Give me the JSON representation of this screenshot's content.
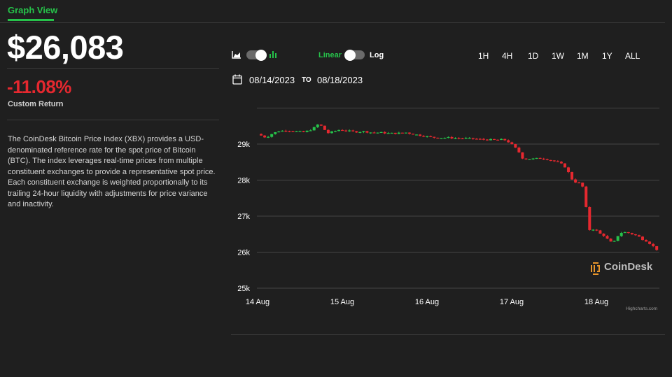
{
  "tab": {
    "label": "Graph View"
  },
  "price": "$26,083",
  "change": {
    "value": "-11.08%",
    "label": "Custom Return"
  },
  "description": "The CoinDesk Bitcoin Price Index (XBX) provides a USD-denominated reference rate for the spot price of Bitcoin (BTC). The index leverages real-time prices from multiple constituent exchanges to provide a representative spot price. Each constituent exchange is weighted proportionally to its trailing 24-hour liquidity with adjustments for price variance and inactivity.",
  "controls": {
    "chart_type_left_icon": "area-chart-icon",
    "chart_type_right_icon": "bar-chart-icon",
    "scale_linear": "Linear",
    "scale_log": "Log",
    "ranges": [
      "1H",
      "4H",
      "1D",
      "1W",
      "1M",
      "1Y",
      "ALL"
    ]
  },
  "date_range": {
    "from": "08/14/2023",
    "to_label": "TO",
    "to": "08/18/2023",
    "icon": "calendar-icon"
  },
  "watermark": "CoinDesk",
  "credits": "Highcharts.com",
  "colors": {
    "accent": "#26c24a",
    "up": "#26c24a",
    "down": "#e5282f",
    "background": "#1f1f1f"
  },
  "chart_data": {
    "type": "candlestick",
    "ylim": [
      25000,
      30000
    ],
    "yticks": [
      25000,
      26000,
      27000,
      28000,
      29000
    ],
    "ytick_labels": [
      "25k",
      "26k",
      "27k",
      "28k",
      "29k"
    ],
    "xtick_labels": [
      "14 Aug",
      "15 Aug",
      "16 Aug",
      "17 Aug",
      "18 Aug"
    ],
    "x_range_days": [
      0,
      4.77
    ],
    "close_path": [
      [
        0.0,
        29280
      ],
      [
        0.05,
        29230
      ],
      [
        0.1,
        29180
      ],
      [
        0.18,
        29300
      ],
      [
        0.25,
        29360
      ],
      [
        0.35,
        29380
      ],
      [
        0.45,
        29350
      ],
      [
        0.55,
        29330
      ],
      [
        0.65,
        29420
      ],
      [
        0.72,
        29560
      ],
      [
        0.77,
        29470
      ],
      [
        0.82,
        29300
      ],
      [
        0.9,
        29350
      ],
      [
        0.97,
        29400
      ],
      [
        1.05,
        29370
      ],
      [
        1.15,
        29340
      ],
      [
        1.25,
        29350
      ],
      [
        1.35,
        29320
      ],
      [
        1.45,
        29320
      ],
      [
        1.55,
        29300
      ],
      [
        1.65,
        29300
      ],
      [
        1.75,
        29320
      ],
      [
        1.85,
        29270
      ],
      [
        1.95,
        29230
      ],
      [
        2.05,
        29190
      ],
      [
        2.15,
        29170
      ],
      [
        2.25,
        29180
      ],
      [
        2.35,
        29160
      ],
      [
        2.45,
        29160
      ],
      [
        2.55,
        29150
      ],
      [
        2.65,
        29130
      ],
      [
        2.75,
        29120
      ],
      [
        2.82,
        29110
      ],
      [
        2.9,
        29130
      ],
      [
        2.95,
        29080
      ],
      [
        3.02,
        28950
      ],
      [
        3.08,
        28800
      ],
      [
        3.12,
        28620
      ],
      [
        3.18,
        28580
      ],
      [
        3.25,
        28590
      ],
      [
        3.35,
        28610
      ],
      [
        3.45,
        28560
      ],
      [
        3.55,
        28490
      ],
      [
        3.6,
        28430
      ],
      [
        3.65,
        28320
      ],
      [
        3.7,
        28050
      ],
      [
        3.75,
        27950
      ],
      [
        3.82,
        27900
      ],
      [
        3.85,
        27750
      ],
      [
        3.88,
        27200
      ],
      [
        3.9,
        26600
      ],
      [
        3.95,
        26650
      ],
      [
        4.0,
        26600
      ],
      [
        4.05,
        26500
      ],
      [
        4.1,
        26450
      ],
      [
        4.15,
        26300
      ],
      [
        4.2,
        26250
      ],
      [
        4.25,
        26450
      ],
      [
        4.3,
        26550
      ],
      [
        4.35,
        26550
      ],
      [
        4.4,
        26520
      ],
      [
        4.45,
        26480
      ],
      [
        4.5,
        26430
      ],
      [
        4.55,
        26350
      ],
      [
        4.6,
        26300
      ],
      [
        4.65,
        26200
      ],
      [
        4.7,
        26100
      ],
      [
        4.75,
        26000
      ]
    ]
  }
}
